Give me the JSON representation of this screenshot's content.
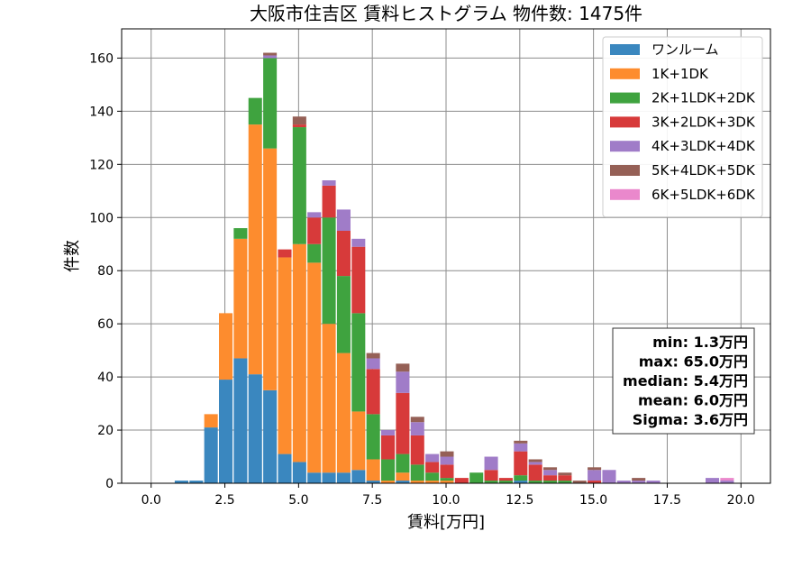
{
  "chart_data": {
    "type": "bar",
    "stacked": true,
    "title": "大阪市住吉区 賃料ヒストグラム  物件数: 1475件",
    "xlabel": "賃料[万円]",
    "ylabel": "件数",
    "xlim": [
      -1.0,
      21.0
    ],
    "ylim": [
      0,
      171
    ],
    "xticks": [
      "0.0",
      "2.5",
      "5.0",
      "7.5",
      "10.0",
      "12.5",
      "15.0",
      "17.5",
      "20.0"
    ],
    "yticks": [
      "0",
      "20",
      "40",
      "60",
      "80",
      "100",
      "120",
      "140",
      "160"
    ],
    "grid": true,
    "legend_position": "top-right",
    "bin_width": 0.5,
    "bin_starts": [
      0.8,
      1.3,
      1.8,
      2.3,
      2.8,
      3.3,
      3.8,
      4.3,
      4.8,
      5.3,
      5.8,
      6.3,
      6.8,
      7.3,
      7.8,
      8.3,
      8.8,
      9.3,
      9.8,
      10.3,
      10.8,
      11.3,
      11.8,
      12.3,
      12.8,
      13.3,
      13.8,
      14.3,
      14.8,
      15.3,
      15.8,
      16.3,
      16.8,
      17.3,
      17.8,
      18.3,
      18.8,
      19.3
    ],
    "series": [
      {
        "name": "ワンルーム",
        "color": "#3a87bf",
        "values": [
          1,
          1,
          21,
          39,
          47,
          41,
          35,
          11,
          8,
          4,
          4,
          4,
          5,
          1,
          0,
          1,
          0,
          0,
          0,
          0,
          0,
          0,
          0,
          1,
          0,
          0,
          0,
          0,
          0,
          0,
          0,
          0,
          0,
          0,
          0,
          0,
          0,
          0
        ]
      },
      {
        "name": "1K+1DK",
        "color": "#fd8c2e",
        "values": [
          0,
          0,
          5,
          25,
          45,
          94,
          91,
          74,
          82,
          79,
          56,
          45,
          22,
          8,
          1,
          3,
          1,
          1,
          1,
          0,
          0,
          0,
          0,
          0,
          0,
          0,
          0,
          0,
          0,
          0,
          0,
          0,
          0,
          0,
          0,
          0,
          0,
          0
        ]
      },
      {
        "name": "2K+1LDK+2DK",
        "color": "#3fa33f",
        "values": [
          0,
          0,
          0,
          0,
          4,
          10,
          34,
          0,
          44,
          7,
          40,
          29,
          37,
          17,
          8,
          7,
          6,
          3,
          1,
          0,
          4,
          1,
          1,
          2,
          1,
          1,
          1,
          0,
          0,
          0,
          0,
          0,
          0,
          0,
          0,
          0,
          0,
          0
        ]
      },
      {
        "name": "3K+2LDK+3DK",
        "color": "#d73a3a",
        "values": [
          0,
          0,
          0,
          0,
          0,
          0,
          0,
          3,
          1,
          10,
          12,
          17,
          25,
          17,
          9,
          23,
          11,
          4,
          5,
          2,
          0,
          4,
          1,
          9,
          6,
          2,
          2,
          0,
          1,
          0,
          0,
          0,
          0,
          0,
          0,
          0,
          0,
          0
        ]
      },
      {
        "name": "4K+3LDK+4DK",
        "color": "#a07cc8",
        "values": [
          0,
          0,
          0,
          0,
          0,
          0,
          1,
          0,
          0,
          2,
          2,
          8,
          3,
          4,
          2,
          8,
          5,
          3,
          3,
          0,
          0,
          5,
          0,
          3,
          1,
          2,
          0,
          0,
          4,
          5,
          1,
          1,
          1,
          0,
          0,
          0,
          2,
          1
        ]
      },
      {
        "name": "5K+4LDK+5DK",
        "color": "#956056",
        "values": [
          0,
          0,
          0,
          0,
          0,
          0,
          1,
          0,
          3,
          0,
          0,
          0,
          0,
          2,
          0,
          3,
          2,
          0,
          2,
          0,
          0,
          0,
          0,
          1,
          1,
          1,
          1,
          1,
          1,
          0,
          0,
          1,
          0,
          0,
          0,
          0,
          0,
          0
        ]
      },
      {
        "name": "6K+5LDK+6DK",
        "color": "#ea88cc",
        "values": [
          0,
          0,
          0,
          0,
          0,
          0,
          0,
          0,
          0,
          0,
          0,
          0,
          0,
          0,
          0,
          0,
          0,
          0,
          0,
          0,
          0,
          0,
          0,
          0,
          0,
          0,
          0,
          0,
          0,
          0,
          0,
          0,
          0,
          0,
          0,
          0,
          0,
          1
        ]
      }
    ],
    "stats": [
      "min: 1.3万円",
      "max: 65.0万円",
      "median: 5.4万円",
      "mean: 6.0万円",
      "Sigma: 3.6万円"
    ]
  }
}
